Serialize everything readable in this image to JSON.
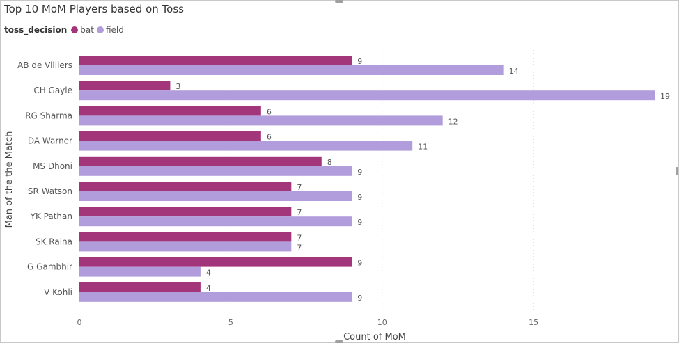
{
  "chart_data": {
    "type": "bar",
    "orientation": "horizontal",
    "title": "Top 10 MoM Players based on Toss",
    "xlabel": "Count of MoM",
    "ylabel": "Man of the the Match",
    "legend_title": "toss_decision",
    "legend_position": "top-left",
    "categories": [
      "AB de Villiers",
      "CH Gayle",
      "RG Sharma",
      "DA Warner",
      "MS Dhoni",
      "SR Watson",
      "YK Pathan",
      "SK Raina",
      "G Gambhir",
      "V Kohli"
    ],
    "series": [
      {
        "name": "bat",
        "color": "#a3357a",
        "values": [
          9,
          3,
          6,
          6,
          8,
          7,
          7,
          7,
          9,
          4
        ]
      },
      {
        "name": "field",
        "color": "#b19cdc",
        "values": [
          14,
          19,
          12,
          11,
          9,
          9,
          9,
          7,
          4,
          9
        ]
      }
    ],
    "xticks": [
      0,
      5,
      10,
      15
    ],
    "xlim": [
      0,
      19
    ],
    "grid": true
  }
}
